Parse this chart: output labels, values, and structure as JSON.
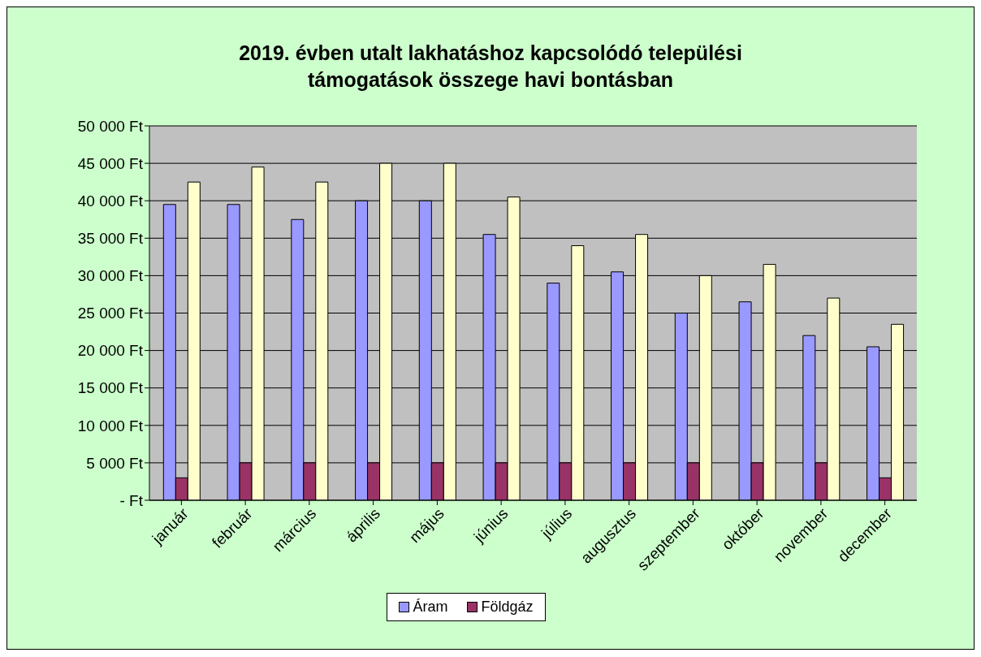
{
  "chart_data": {
    "type": "bar",
    "title": "2019. évben utalt lakhatáshoz kapcsolódó települési\ntámogatások összege havi bontásban",
    "categories": [
      "január",
      "február",
      "március",
      "április",
      "május",
      "június",
      "július",
      "augusztus",
      "szeptember",
      "október",
      "november",
      "december"
    ],
    "series": [
      {
        "name": "Áram",
        "color": "#9999ff",
        "values": [
          39500,
          39500,
          37500,
          40000,
          40000,
          35500,
          29000,
          30500,
          25000,
          26500,
          22000,
          20500
        ]
      },
      {
        "name": "Földgáz",
        "color": "#993366",
        "values": [
          3000,
          5000,
          5000,
          5000,
          5000,
          5000,
          5000,
          5000,
          5000,
          5000,
          5000,
          3000
        ]
      },
      {
        "color": "#ffffcc",
        "values": [
          42500,
          44500,
          42500,
          45000,
          45000,
          40500,
          34000,
          35500,
          30000,
          31500,
          27000,
          23500
        ]
      }
    ],
    "ylim": [
      0,
      50000
    ],
    "yticks": [
      {
        "value": 0,
        "label": "- Ft"
      },
      {
        "value": 5000,
        "label": "5 000 Ft"
      },
      {
        "value": 10000,
        "label": "10 000 Ft"
      },
      {
        "value": 15000,
        "label": "15 000 Ft"
      },
      {
        "value": 20000,
        "label": "20 000 Ft"
      },
      {
        "value": 25000,
        "label": "25 000 Ft"
      },
      {
        "value": 30000,
        "label": "30 000 Ft"
      },
      {
        "value": 35000,
        "label": "35 000 Ft"
      },
      {
        "value": 40000,
        "label": "40 000 Ft"
      },
      {
        "value": 45000,
        "label": "45 000 Ft"
      },
      {
        "value": 50000,
        "label": "50 000 Ft"
      }
    ],
    "grid": "y",
    "legend": "bottom"
  }
}
